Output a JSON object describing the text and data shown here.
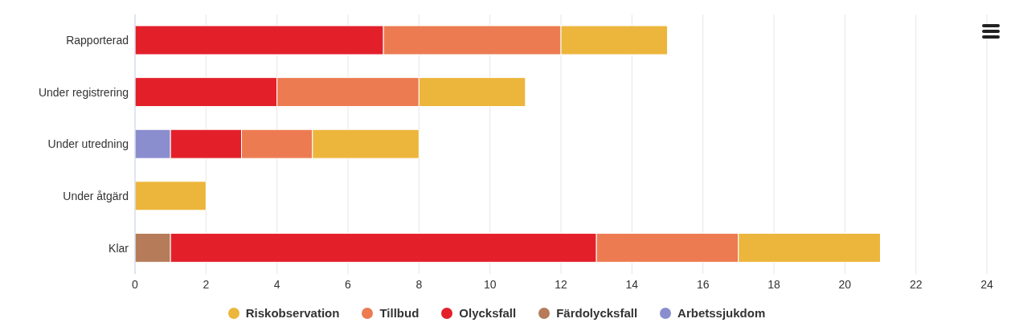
{
  "chart_data": {
    "type": "bar",
    "orientation": "horizontal",
    "stacked": true,
    "categories": [
      "Rapporterad",
      "Under registrering",
      "Under utredning",
      "Under åtgärd",
      "Klar"
    ],
    "series": [
      {
        "name": "Arbetssjukdom",
        "color": "#8a8ecf",
        "values": [
          null,
          null,
          1,
          null,
          null
        ]
      },
      {
        "name": "Färdolycksfall",
        "color": "#b67c5a",
        "values": [
          null,
          null,
          null,
          null,
          1
        ]
      },
      {
        "name": "Olycksfall",
        "color": "#e3202a",
        "values": [
          7,
          4,
          2,
          null,
          12
        ]
      },
      {
        "name": "Tillbud",
        "color": "#ec7b52",
        "values": [
          5,
          4,
          2,
          null,
          4
        ]
      },
      {
        "name": "Riskobservation",
        "color": "#ecb63c",
        "values": [
          3,
          3,
          3,
          2,
          4
        ]
      }
    ],
    "xlim": [
      0,
      24
    ],
    "xticks": [
      0,
      2,
      4,
      6,
      8,
      10,
      12,
      14,
      16,
      18,
      20,
      22,
      24
    ],
    "grid": "x",
    "legend": "bottom"
  }
}
